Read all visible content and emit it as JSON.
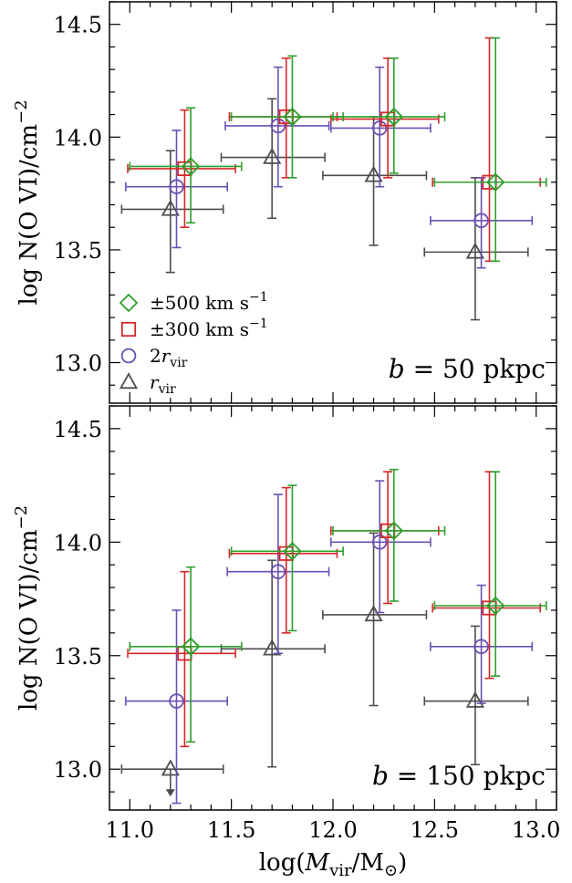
{
  "colors": {
    "r500": "#2ca02c",
    "r300": "#d62728",
    "r2vir": "#6a51b3",
    "rvir": "#4d4d4d"
  },
  "chart_data": [
    {
      "type": "scatter",
      "panel": "top",
      "xlabel": "log(M_vir/M_⊙)",
      "ylabel": "log N(O VI)/cm^−2",
      "xlim": [
        10.9,
        13.1
      ],
      "ylim": [
        12.82,
        14.6
      ],
      "xticks": [
        "11.0",
        "11.5",
        "12.0",
        "12.5",
        "13.0"
      ],
      "yticks": [
        "13.0",
        "13.5",
        "14.0",
        "14.5"
      ],
      "annotation": {
        "var": "b",
        "rest": " = 50 pkpc"
      },
      "legend": [
        {
          "key": "r500",
          "marker": "diamond",
          "text": "±500 km s",
          "sup": "−1",
          "sub": ""
        },
        {
          "key": "r300",
          "marker": "square",
          "text": "±300 km s",
          "sup": "−1",
          "sub": ""
        },
        {
          "key": "r2vir",
          "marker": "circle",
          "text": "2r",
          "sup": "",
          "sub": "vir"
        },
        {
          "key": "rvir",
          "marker": "triangle",
          "text": "r",
          "sup": "",
          "sub": "vir"
        }
      ],
      "series": [
        {
          "key": "r500",
          "marker": "diamond",
          "points": [
            {
              "x": 11.3,
              "y": 13.87,
              "xerr": [
                11.0,
                11.55
              ],
              "yerr": [
                13.62,
                14.13
              ]
            },
            {
              "x": 11.8,
              "y": 14.09,
              "xerr": [
                11.5,
                12.05
              ],
              "yerr": [
                13.82,
                14.36
              ]
            },
            {
              "x": 12.3,
              "y": 14.09,
              "xerr": [
                12.0,
                12.55
              ],
              "yerr": [
                13.84,
                14.35
              ]
            },
            {
              "x": 12.8,
              "y": 13.8,
              "xerr": [
                12.5,
                13.05
              ],
              "yerr": [
                13.45,
                14.44
              ]
            }
          ]
        },
        {
          "key": "r300",
          "marker": "square",
          "points": [
            {
              "x": 11.27,
              "y": 13.86,
              "xerr": [
                10.99,
                11.52
              ],
              "yerr": [
                13.6,
                14.12
              ]
            },
            {
              "x": 11.77,
              "y": 14.09,
              "xerr": [
                11.49,
                12.02
              ],
              "yerr": [
                13.82,
                14.35
              ]
            },
            {
              "x": 12.27,
              "y": 14.08,
              "xerr": [
                11.99,
                12.52
              ],
              "yerr": [
                13.82,
                14.35
              ]
            },
            {
              "x": 12.77,
              "y": 13.8,
              "xerr": [
                12.49,
                13.02
              ],
              "yerr": [
                13.45,
                14.44
              ]
            }
          ]
        },
        {
          "key": "r2vir",
          "marker": "circle",
          "points": [
            {
              "x": 11.23,
              "y": 13.78,
              "xerr": [
                10.98,
                11.48
              ],
              "yerr": [
                13.51,
                14.03
              ]
            },
            {
              "x": 11.73,
              "y": 14.05,
              "xerr": [
                11.47,
                11.98
              ],
              "yerr": [
                13.78,
                14.31
              ]
            },
            {
              "x": 12.23,
              "y": 14.04,
              "xerr": [
                11.99,
                12.48
              ],
              "yerr": [
                13.78,
                14.31
              ]
            },
            {
              "x": 12.73,
              "y": 13.63,
              "xerr": [
                12.48,
                12.98
              ],
              "yerr": [
                13.42,
                13.82
              ]
            }
          ]
        },
        {
          "key": "rvir",
          "marker": "triangle",
          "points": [
            {
              "x": 11.2,
              "y": 13.68,
              "xerr": [
                10.96,
                11.46
              ],
              "yerr": [
                13.4,
                13.94
              ]
            },
            {
              "x": 11.7,
              "y": 13.91,
              "xerr": [
                11.45,
                11.96
              ],
              "yerr": [
                13.64,
                14.17
              ]
            },
            {
              "x": 12.2,
              "y": 13.83,
              "xerr": [
                11.95,
                12.46
              ],
              "yerr": [
                13.52,
                14.09
              ]
            },
            {
              "x": 12.7,
              "y": 13.49,
              "xerr": [
                12.45,
                12.96
              ],
              "yerr": [
                13.19,
                13.82
              ]
            }
          ]
        }
      ]
    },
    {
      "type": "scatter",
      "panel": "bottom",
      "xlabel": "log(M_vir/M_⊙)",
      "ylabel": "log N(O VI)/cm^−2",
      "xlim": [
        10.9,
        13.1
      ],
      "ylim": [
        12.82,
        14.6
      ],
      "xticks": [
        "11.0",
        "11.5",
        "12.0",
        "12.5",
        "13.0"
      ],
      "yticks": [
        "13.0",
        "13.5",
        "14.0",
        "14.5"
      ],
      "annotation": {
        "var": "b",
        "rest": " = 150 pkpc"
      },
      "series": [
        {
          "key": "r500",
          "marker": "diamond",
          "points": [
            {
              "x": 11.3,
              "y": 13.54,
              "xerr": [
                11.0,
                11.55
              ],
              "yerr": [
                13.12,
                13.89
              ]
            },
            {
              "x": 11.8,
              "y": 13.96,
              "xerr": [
                11.5,
                12.05
              ],
              "yerr": [
                13.61,
                14.25
              ]
            },
            {
              "x": 12.3,
              "y": 14.05,
              "xerr": [
                12.0,
                12.55
              ],
              "yerr": [
                13.74,
                14.32
              ]
            },
            {
              "x": 12.8,
              "y": 13.72,
              "xerr": [
                12.5,
                13.05
              ],
              "yerr": [
                13.41,
                14.31
              ]
            }
          ]
        },
        {
          "key": "r300",
          "marker": "square",
          "points": [
            {
              "x": 11.27,
              "y": 13.51,
              "xerr": [
                10.99,
                11.52
              ],
              "yerr": [
                13.1,
                13.87
              ]
            },
            {
              "x": 11.77,
              "y": 13.95,
              "xerr": [
                11.49,
                12.02
              ],
              "yerr": [
                13.6,
                14.24
              ]
            },
            {
              "x": 12.27,
              "y": 14.05,
              "xerr": [
                11.99,
                12.52
              ],
              "yerr": [
                13.73,
                14.31
              ]
            },
            {
              "x": 12.77,
              "y": 13.71,
              "xerr": [
                12.49,
                13.02
              ],
              "yerr": [
                13.4,
                14.31
              ]
            }
          ]
        },
        {
          "key": "r2vir",
          "marker": "circle",
          "points": [
            {
              "x": 11.23,
              "y": 13.3,
              "xerr": [
                10.98,
                11.48
              ],
              "yerr": [
                12.85,
                13.7
              ]
            },
            {
              "x": 11.73,
              "y": 13.87,
              "xerr": [
                11.48,
                11.98
              ],
              "yerr": [
                13.51,
                14.21
              ]
            },
            {
              "x": 12.23,
              "y": 14.0,
              "xerr": [
                11.99,
                12.48
              ],
              "yerr": [
                13.69,
                14.27
              ]
            },
            {
              "x": 12.73,
              "y": 13.54,
              "xerr": [
                12.48,
                12.98
              ],
              "yerr": [
                13.29,
                13.81
              ]
            }
          ]
        },
        {
          "key": "rvir",
          "marker": "triangle",
          "points": [
            {
              "x": 11.2,
              "y": 13.0,
              "xerr": [
                10.96,
                11.46
              ],
              "upper_limit": true
            },
            {
              "x": 11.7,
              "y": 13.53,
              "xerr": [
                11.45,
                11.96
              ],
              "yerr": [
                13.01,
                13.92
              ]
            },
            {
              "x": 12.2,
              "y": 13.68,
              "xerr": [
                11.95,
                12.46
              ],
              "yerr": [
                13.28,
                14.04
              ]
            },
            {
              "x": 12.7,
              "y": 13.3,
              "xerr": [
                12.45,
                12.96
              ],
              "yerr": [
                13.02,
                13.63
              ]
            }
          ]
        }
      ]
    }
  ]
}
